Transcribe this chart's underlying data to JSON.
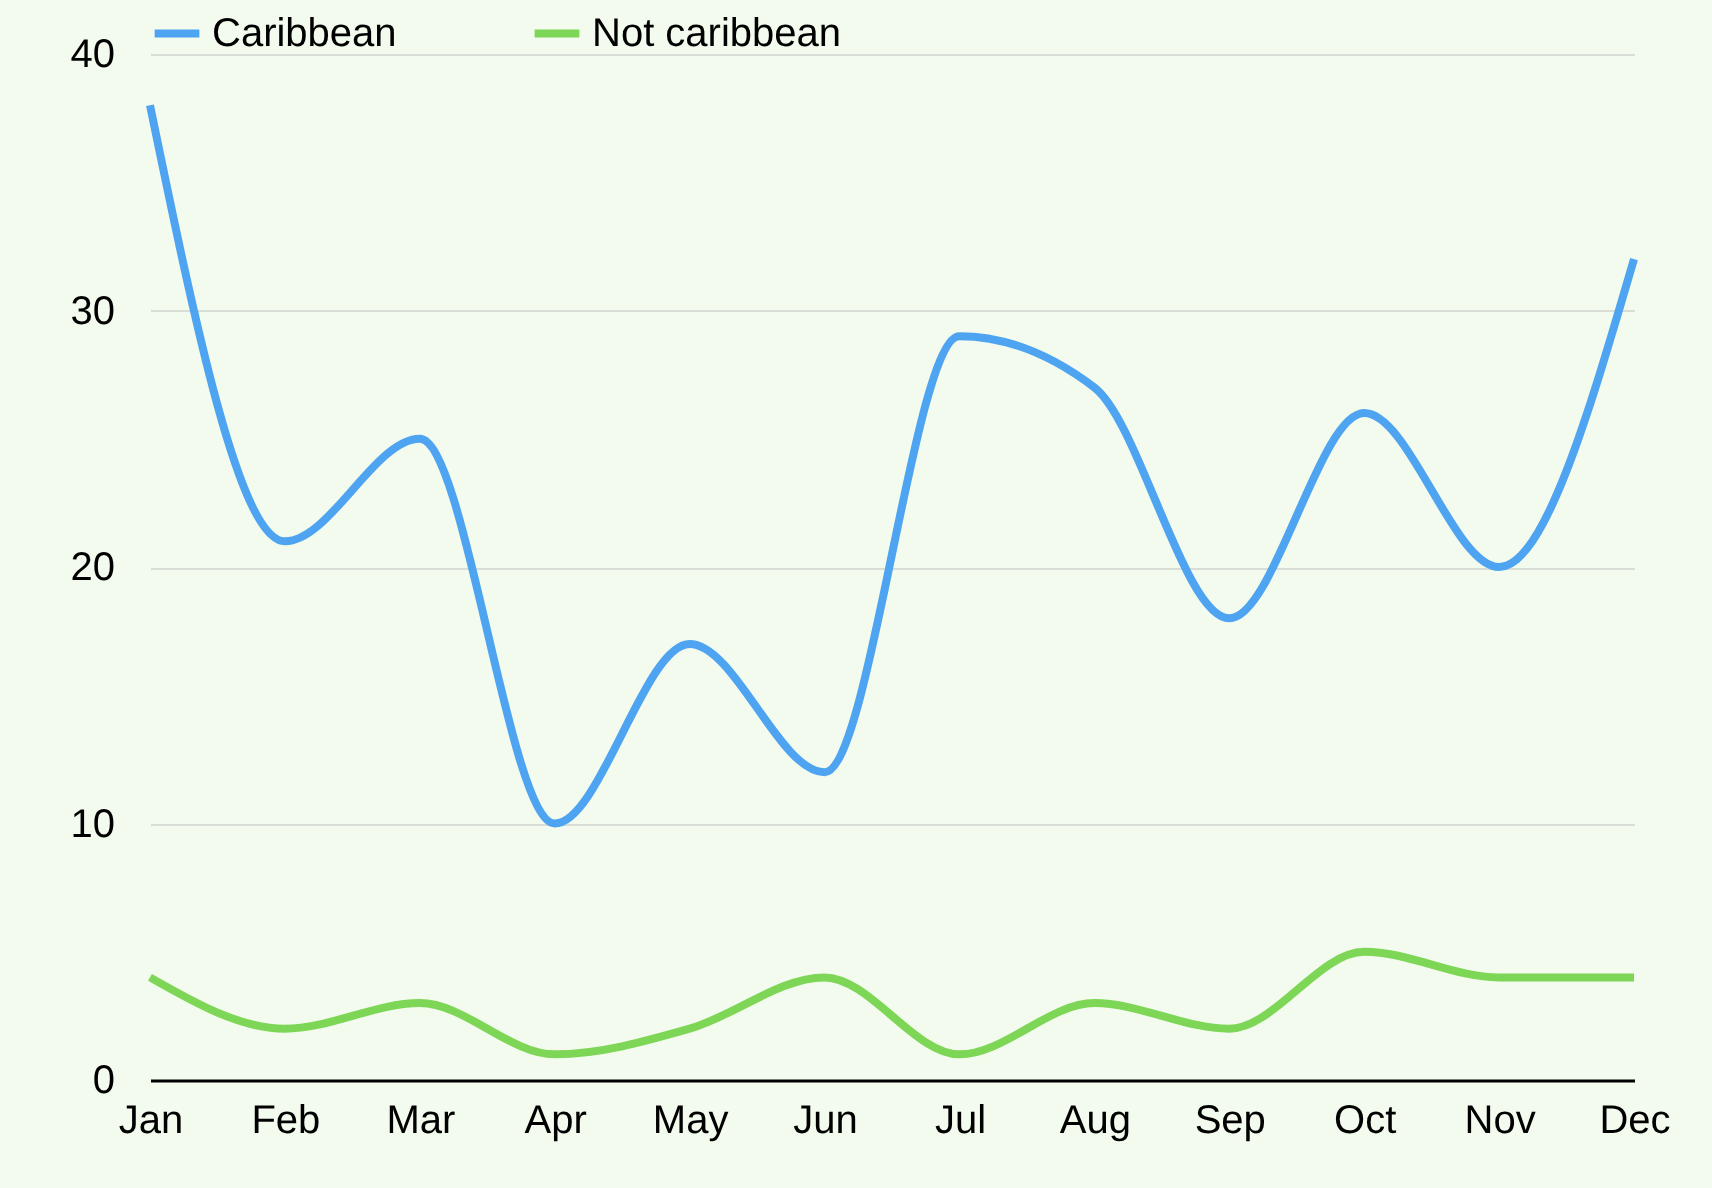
{
  "chart_data": {
    "type": "line",
    "categories": [
      "Jan",
      "Feb",
      "Mar",
      "Apr",
      "May",
      "Jun",
      "Jul",
      "Aug",
      "Sep",
      "Oct",
      "Nov",
      "Dec"
    ],
    "series": [
      {
        "name": "Caribbean",
        "color": "#4ea4f0",
        "values": [
          38,
          21,
          25,
          10,
          17,
          12,
          29,
          27,
          18,
          26,
          20,
          32
        ]
      },
      {
        "name": "Not caribbean",
        "color": "#7dd655",
        "values": [
          4,
          2,
          3,
          1,
          2,
          4,
          1,
          3,
          2,
          5,
          4,
          4
        ]
      }
    ],
    "ylim": [
      0,
      40
    ],
    "yticks": [
      0,
      10,
      20,
      30,
      40
    ],
    "grid": "y",
    "legend": "top",
    "line_style": "solid",
    "marker": "none"
  }
}
